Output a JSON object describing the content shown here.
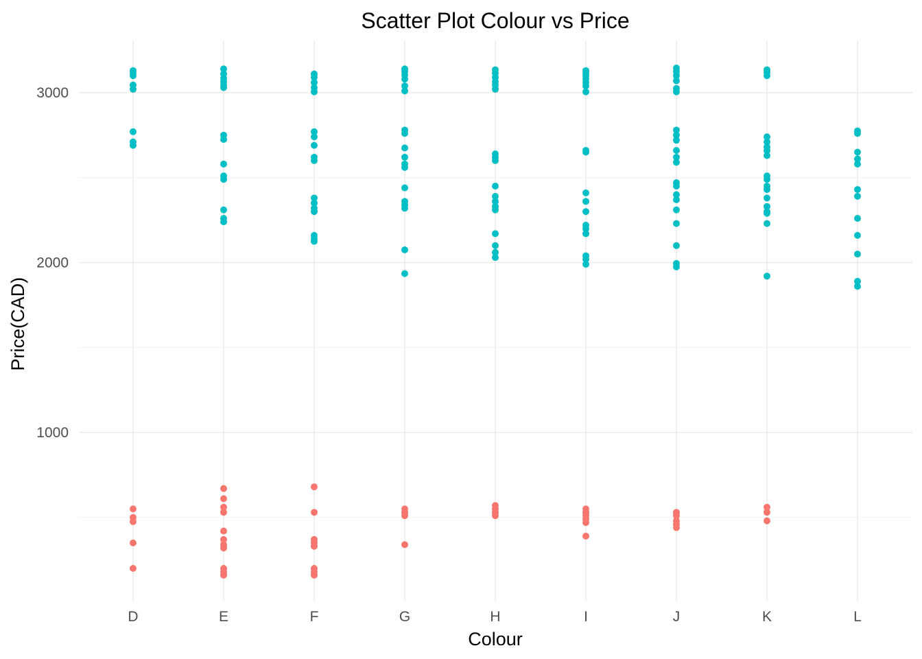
{
  "chart_data": {
    "type": "scatter",
    "title": "Scatter Plot Colour vs Price",
    "xlabel": "Colour",
    "ylabel": "Price(CAD)",
    "categories": [
      "D",
      "E",
      "F",
      "G",
      "H",
      "I",
      "J",
      "K",
      "L"
    ],
    "ylim": [
      60,
      3350
    ],
    "yticks": [
      1000,
      2000,
      3000
    ],
    "grid": true,
    "legend": "none",
    "series": [
      {
        "color": "#00BFC4",
        "points": [
          {
            "x": "D",
            "y": 3130
          },
          {
            "x": "D",
            "y": 3115
          },
          {
            "x": "D",
            "y": 3100
          },
          {
            "x": "D",
            "y": 3045
          },
          {
            "x": "D",
            "y": 3020
          },
          {
            "x": "D",
            "y": 2770
          },
          {
            "x": "D",
            "y": 2710
          },
          {
            "x": "D",
            "y": 2690
          },
          {
            "x": "E",
            "y": 3140
          },
          {
            "x": "E",
            "y": 3110
          },
          {
            "x": "E",
            "y": 3085
          },
          {
            "x": "E",
            "y": 3065
          },
          {
            "x": "E",
            "y": 3045
          },
          {
            "x": "E",
            "y": 3030
          },
          {
            "x": "E",
            "y": 2750
          },
          {
            "x": "E",
            "y": 2725
          },
          {
            "x": "E",
            "y": 2580
          },
          {
            "x": "E",
            "y": 2510
          },
          {
            "x": "E",
            "y": 2490
          },
          {
            "x": "E",
            "y": 2310
          },
          {
            "x": "E",
            "y": 2260
          },
          {
            "x": "E",
            "y": 2240
          },
          {
            "x": "F",
            "y": 3110
          },
          {
            "x": "F",
            "y": 3090
          },
          {
            "x": "F",
            "y": 3060
          },
          {
            "x": "F",
            "y": 3030
          },
          {
            "x": "F",
            "y": 3005
          },
          {
            "x": "F",
            "y": 2770
          },
          {
            "x": "F",
            "y": 2740
          },
          {
            "x": "F",
            "y": 2690
          },
          {
            "x": "F",
            "y": 2620
          },
          {
            "x": "F",
            "y": 2600
          },
          {
            "x": "F",
            "y": 2380
          },
          {
            "x": "F",
            "y": 2350
          },
          {
            "x": "F",
            "y": 2320
          },
          {
            "x": "F",
            "y": 2300
          },
          {
            "x": "F",
            "y": 2160
          },
          {
            "x": "F",
            "y": 2140
          },
          {
            "x": "F",
            "y": 2125
          },
          {
            "x": "G",
            "y": 3140
          },
          {
            "x": "G",
            "y": 3125
          },
          {
            "x": "G",
            "y": 3105
          },
          {
            "x": "G",
            "y": 3080
          },
          {
            "x": "G",
            "y": 3040
          },
          {
            "x": "G",
            "y": 3010
          },
          {
            "x": "G",
            "y": 2780
          },
          {
            "x": "G",
            "y": 2760
          },
          {
            "x": "G",
            "y": 2675
          },
          {
            "x": "G",
            "y": 2620
          },
          {
            "x": "G",
            "y": 2580
          },
          {
            "x": "G",
            "y": 2560
          },
          {
            "x": "G",
            "y": 2440
          },
          {
            "x": "G",
            "y": 2360
          },
          {
            "x": "G",
            "y": 2340
          },
          {
            "x": "G",
            "y": 2320
          },
          {
            "x": "G",
            "y": 2075
          },
          {
            "x": "G",
            "y": 1935
          },
          {
            "x": "H",
            "y": 3135
          },
          {
            "x": "H",
            "y": 3115
          },
          {
            "x": "H",
            "y": 3090
          },
          {
            "x": "H",
            "y": 3065
          },
          {
            "x": "H",
            "y": 3045
          },
          {
            "x": "H",
            "y": 3020
          },
          {
            "x": "H",
            "y": 2640
          },
          {
            "x": "H",
            "y": 2620
          },
          {
            "x": "H",
            "y": 2600
          },
          {
            "x": "H",
            "y": 2450
          },
          {
            "x": "H",
            "y": 2390
          },
          {
            "x": "H",
            "y": 2360
          },
          {
            "x": "H",
            "y": 2330
          },
          {
            "x": "H",
            "y": 2310
          },
          {
            "x": "H",
            "y": 2170
          },
          {
            "x": "H",
            "y": 2100
          },
          {
            "x": "H",
            "y": 2060
          },
          {
            "x": "H",
            "y": 2030
          },
          {
            "x": "I",
            "y": 3130
          },
          {
            "x": "I",
            "y": 3115
          },
          {
            "x": "I",
            "y": 3100
          },
          {
            "x": "I",
            "y": 3080
          },
          {
            "x": "I",
            "y": 3060
          },
          {
            "x": "I",
            "y": 3040
          },
          {
            "x": "I",
            "y": 3005
          },
          {
            "x": "I",
            "y": 2660
          },
          {
            "x": "I",
            "y": 2650
          },
          {
            "x": "I",
            "y": 2410
          },
          {
            "x": "I",
            "y": 2360
          },
          {
            "x": "I",
            "y": 2300
          },
          {
            "x": "I",
            "y": 2220
          },
          {
            "x": "I",
            "y": 2200
          },
          {
            "x": "I",
            "y": 2170
          },
          {
            "x": "I",
            "y": 2040
          },
          {
            "x": "I",
            "y": 2020
          },
          {
            "x": "I",
            "y": 1990
          },
          {
            "x": "J",
            "y": 3145
          },
          {
            "x": "J",
            "y": 3125
          },
          {
            "x": "J",
            "y": 3100
          },
          {
            "x": "J",
            "y": 3070
          },
          {
            "x": "J",
            "y": 3025
          },
          {
            "x": "J",
            "y": 3005
          },
          {
            "x": "J",
            "y": 2780
          },
          {
            "x": "J",
            "y": 2750
          },
          {
            "x": "J",
            "y": 2720
          },
          {
            "x": "J",
            "y": 2660
          },
          {
            "x": "J",
            "y": 2620
          },
          {
            "x": "J",
            "y": 2590
          },
          {
            "x": "J",
            "y": 2470
          },
          {
            "x": "J",
            "y": 2450
          },
          {
            "x": "J",
            "y": 2400
          },
          {
            "x": "J",
            "y": 2370
          },
          {
            "x": "J",
            "y": 2310
          },
          {
            "x": "J",
            "y": 2230
          },
          {
            "x": "J",
            "y": 2100
          },
          {
            "x": "J",
            "y": 1995
          },
          {
            "x": "J",
            "y": 1975
          },
          {
            "x": "K",
            "y": 3135
          },
          {
            "x": "K",
            "y": 3120
          },
          {
            "x": "K",
            "y": 3100
          },
          {
            "x": "K",
            "y": 2740
          },
          {
            "x": "K",
            "y": 2710
          },
          {
            "x": "K",
            "y": 2680
          },
          {
            "x": "K",
            "y": 2660
          },
          {
            "x": "K",
            "y": 2630
          },
          {
            "x": "K",
            "y": 2510
          },
          {
            "x": "K",
            "y": 2490
          },
          {
            "x": "K",
            "y": 2450
          },
          {
            "x": "K",
            "y": 2430
          },
          {
            "x": "K",
            "y": 2380
          },
          {
            "x": "K",
            "y": 2330
          },
          {
            "x": "K",
            "y": 2300
          },
          {
            "x": "K",
            "y": 2290
          },
          {
            "x": "K",
            "y": 2230
          },
          {
            "x": "K",
            "y": 1920
          },
          {
            "x": "L",
            "y": 2775
          },
          {
            "x": "L",
            "y": 2760
          },
          {
            "x": "L",
            "y": 2650
          },
          {
            "x": "L",
            "y": 2610
          },
          {
            "x": "L",
            "y": 2580
          },
          {
            "x": "L",
            "y": 2430
          },
          {
            "x": "L",
            "y": 2390
          },
          {
            "x": "L",
            "y": 2260
          },
          {
            "x": "L",
            "y": 2160
          },
          {
            "x": "L",
            "y": 2050
          },
          {
            "x": "L",
            "y": 1890
          },
          {
            "x": "L",
            "y": 1860
          }
        ]
      },
      {
        "color": "#F8766D",
        "points": [
          {
            "x": "D",
            "y": 550
          },
          {
            "x": "D",
            "y": 500
          },
          {
            "x": "D",
            "y": 475
          },
          {
            "x": "D",
            "y": 350
          },
          {
            "x": "D",
            "y": 200
          },
          {
            "x": "E",
            "y": 670
          },
          {
            "x": "E",
            "y": 610
          },
          {
            "x": "E",
            "y": 560
          },
          {
            "x": "E",
            "y": 530
          },
          {
            "x": "E",
            "y": 420
          },
          {
            "x": "E",
            "y": 370
          },
          {
            "x": "E",
            "y": 340
          },
          {
            "x": "E",
            "y": 320
          },
          {
            "x": "E",
            "y": 200
          },
          {
            "x": "E",
            "y": 180
          },
          {
            "x": "E",
            "y": 160
          },
          {
            "x": "F",
            "y": 680
          },
          {
            "x": "F",
            "y": 530
          },
          {
            "x": "F",
            "y": 370
          },
          {
            "x": "F",
            "y": 350
          },
          {
            "x": "F",
            "y": 330
          },
          {
            "x": "F",
            "y": 200
          },
          {
            "x": "F",
            "y": 180
          },
          {
            "x": "F",
            "y": 160
          },
          {
            "x": "G",
            "y": 550
          },
          {
            "x": "G",
            "y": 530
          },
          {
            "x": "G",
            "y": 510
          },
          {
            "x": "G",
            "y": 340
          },
          {
            "x": "H",
            "y": 570
          },
          {
            "x": "H",
            "y": 550
          },
          {
            "x": "H",
            "y": 530
          },
          {
            "x": "H",
            "y": 510
          },
          {
            "x": "I",
            "y": 550
          },
          {
            "x": "I",
            "y": 530
          },
          {
            "x": "I",
            "y": 510
          },
          {
            "x": "I",
            "y": 490
          },
          {
            "x": "I",
            "y": 470
          },
          {
            "x": "I",
            "y": 390
          },
          {
            "x": "J",
            "y": 530
          },
          {
            "x": "J",
            "y": 510
          },
          {
            "x": "J",
            "y": 480
          },
          {
            "x": "J",
            "y": 460
          },
          {
            "x": "J",
            "y": 440
          },
          {
            "x": "K",
            "y": 560
          },
          {
            "x": "K",
            "y": 530
          },
          {
            "x": "K",
            "y": 480
          }
        ]
      }
    ]
  }
}
